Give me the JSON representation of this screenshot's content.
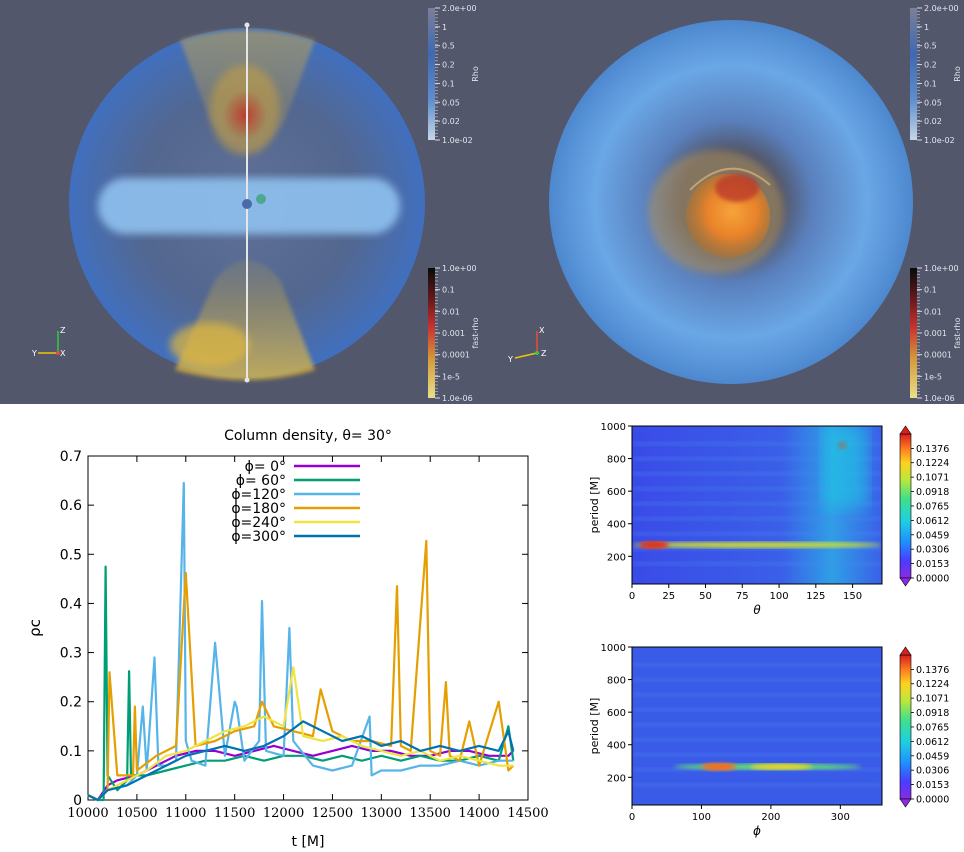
{
  "renders": {
    "left_colorbar_rho": {
      "title": "Rho",
      "ticks": [
        "2.0e+00",
        "1",
        "0.5",
        "0.2",
        "0.1",
        "0.05",
        "0.02",
        "1.0e-02"
      ]
    },
    "left_colorbar_fastrho": {
      "title": "fast-rho",
      "ticks": [
        "1.0e+00",
        "0.1",
        "0.01",
        "0.001",
        "0.0001",
        "1e-5",
        "1.0e-06"
      ]
    },
    "right_colorbar_rho": {
      "title": "Rho",
      "ticks": [
        "2.0e+00",
        "1",
        "0.5",
        "0.2",
        "0.1",
        "0.05",
        "0.02",
        "1.0e-02"
      ]
    },
    "right_colorbar_fastrho": {
      "title": "fast-rho",
      "ticks": [
        "1.0e+00",
        "0.1",
        "0.01",
        "0.001",
        "0.0001",
        "1e-5",
        "1.0e-06"
      ]
    },
    "axes_left": {
      "up": "Z",
      "side": "Y",
      "out": "X"
    },
    "axes_right": {
      "up": "X",
      "side": "Y",
      "out": "Z"
    },
    "colors": {
      "background": "#52576b",
      "disk": "#8fc1f0",
      "shell": "#4f83c8",
      "jet": "#d9b552",
      "core": "#e8822a"
    }
  },
  "chart_data": [
    {
      "type": "line",
      "title": "Column density, θ= 30°",
      "xlabel": "t [M]",
      "ylabel": "ρc",
      "xlim": [
        10000,
        14500
      ],
      "ylim": [
        0,
        0.7
      ],
      "xticks": [
        "10000",
        "10500",
        "11000",
        "11500",
        "12000",
        "12500",
        "13000",
        "13500",
        "14000",
        "14500"
      ],
      "yticks": [
        "0",
        "0.1",
        "0.2",
        "0.3",
        "0.4",
        "0.5",
        "0.6",
        "0.7"
      ],
      "legend_position": "top-center",
      "series": [
        {
          "name": "ϕ= 0°",
          "color": "#9400d3",
          "x": [
            10000,
            10100,
            10200,
            10300,
            10500,
            10700,
            10900,
            11100,
            11300,
            11500,
            11700,
            11900,
            12100,
            12300,
            12500,
            12700,
            12900,
            13100,
            13300,
            13500,
            13700,
            13900,
            14100,
            14300,
            14350
          ],
          "y": [
            0.01,
            0.0,
            0.03,
            0.04,
            0.05,
            0.07,
            0.09,
            0.1,
            0.1,
            0.09,
            0.1,
            0.11,
            0.1,
            0.09,
            0.1,
            0.11,
            0.1,
            0.1,
            0.09,
            0.09,
            0.1,
            0.1,
            0.09,
            0.09,
            0.1
          ]
        },
        {
          "name": "ϕ= 60°",
          "color": "#009e73",
          "x": [
            10000,
            10100,
            10160,
            10180,
            10200,
            10300,
            10400,
            10420,
            10440,
            10600,
            10800,
            11000,
            11200,
            11400,
            11600,
            11800,
            12000,
            12200,
            12400,
            12600,
            12800,
            13000,
            13200,
            13400,
            13600,
            13800,
            14000,
            14200,
            14300,
            14350
          ],
          "y": [
            0.01,
            0.0,
            0.0,
            0.475,
            0.05,
            0.02,
            0.04,
            0.262,
            0.05,
            0.05,
            0.06,
            0.07,
            0.08,
            0.08,
            0.09,
            0.08,
            0.09,
            0.09,
            0.08,
            0.09,
            0.08,
            0.09,
            0.08,
            0.09,
            0.08,
            0.08,
            0.09,
            0.08,
            0.15,
            0.08
          ]
        },
        {
          "name": "ϕ=120°",
          "color": "#56b4e9",
          "x": [
            10000,
            10100,
            10200,
            10400,
            10500,
            10560,
            10600,
            10680,
            10720,
            10800,
            10900,
            10980,
            11000,
            11060,
            11200,
            11300,
            11400,
            11500,
            11520,
            11600,
            11750,
            11780,
            11820,
            12000,
            12060,
            12100,
            12300,
            12500,
            12700,
            12880,
            12900,
            13000,
            13200,
            13400,
            13600,
            13800,
            14000,
            14200,
            14350
          ],
          "y": [
            0.01,
            0.0,
            0.02,
            0.03,
            0.05,
            0.19,
            0.06,
            0.29,
            0.07,
            0.07,
            0.08,
            0.645,
            0.12,
            0.08,
            0.07,
            0.32,
            0.09,
            0.2,
            0.19,
            0.08,
            0.12,
            0.405,
            0.1,
            0.09,
            0.35,
            0.12,
            0.07,
            0.06,
            0.07,
            0.17,
            0.05,
            0.06,
            0.06,
            0.07,
            0.07,
            0.08,
            0.07,
            0.08,
            0.08
          ]
        },
        {
          "name": "ϕ=180°",
          "color": "#e69f00",
          "x": [
            10000,
            10100,
            10200,
            10220,
            10300,
            10460,
            10480,
            10500,
            10700,
            10900,
            11000,
            11100,
            11300,
            11500,
            11700,
            11780,
            11900,
            12100,
            12300,
            12380,
            12500,
            12700,
            12900,
            13100,
            13160,
            13200,
            13300,
            13460,
            13500,
            13600,
            13660,
            13700,
            13800,
            13900,
            14000,
            14200,
            14300,
            14350
          ],
          "y": [
            0.01,
            0.0,
            0.02,
            0.26,
            0.05,
            0.05,
            0.19,
            0.06,
            0.09,
            0.11,
            0.462,
            0.11,
            0.12,
            0.14,
            0.15,
            0.2,
            0.15,
            0.14,
            0.13,
            0.225,
            0.14,
            0.12,
            0.12,
            0.11,
            0.435,
            0.11,
            0.1,
            0.527,
            0.1,
            0.09,
            0.24,
            0.09,
            0.08,
            0.16,
            0.07,
            0.2,
            0.06,
            0.07
          ]
        },
        {
          "name": "ϕ=240°",
          "color": "#f0e442",
          "x": [
            10000,
            10100,
            10200,
            10400,
            10600,
            10800,
            11000,
            11200,
            11400,
            11600,
            11800,
            12000,
            12100,
            12200,
            12400,
            12600,
            12800,
            13000,
            13200,
            13400,
            13600,
            13800,
            14000,
            14200,
            14350
          ],
          "y": [
            0.01,
            0.0,
            0.02,
            0.04,
            0.06,
            0.09,
            0.1,
            0.12,
            0.14,
            0.15,
            0.17,
            0.15,
            0.27,
            0.13,
            0.12,
            0.13,
            0.11,
            0.1,
            0.09,
            0.1,
            0.08,
            0.09,
            0.08,
            0.07,
            0.07
          ]
        },
        {
          "name": "ϕ=300°",
          "color": "#0072b2",
          "x": [
            10000,
            10100,
            10200,
            10400,
            10600,
            10800,
            11000,
            11200,
            11400,
            11600,
            11800,
            12000,
            12200,
            12400,
            12600,
            12800,
            13000,
            13200,
            13400,
            13600,
            13800,
            14000,
            14200,
            14300,
            14350
          ],
          "y": [
            0.01,
            0.0,
            0.02,
            0.03,
            0.05,
            0.07,
            0.09,
            0.1,
            0.11,
            0.1,
            0.11,
            0.13,
            0.16,
            0.14,
            0.12,
            0.13,
            0.11,
            0.12,
            0.1,
            0.11,
            0.1,
            0.11,
            0.1,
            0.14,
            0.1
          ]
        }
      ]
    },
    {
      "type": "heatmap",
      "xlabel": "θ",
      "ylabel": "period [M]",
      "xlim": [
        0,
        170
      ],
      "ylim": [
        30,
        1000
      ],
      "xticks": [
        "0",
        "25",
        "50",
        "75",
        "100",
        "125",
        "150"
      ],
      "yticks": [
        "200",
        "400",
        "600",
        "800",
        "1000"
      ],
      "colorbar": {
        "min": 0.0,
        "max": 0.1529,
        "ticks": [
          "0.0000",
          "0.0153",
          "0.0306",
          "0.0459",
          "0.0612",
          "0.0765",
          "0.0918",
          "0.1071",
          "0.1224",
          "0.1376"
        ]
      },
      "features": [
        {
          "theta": [
            0,
            170
          ],
          "period": 270,
          "level": 0.11
        },
        {
          "theta": [
            5,
            25
          ],
          "period": 270,
          "level": 0.15
        },
        {
          "theta": [
            140,
            146
          ],
          "period": 880,
          "level": 0.15
        },
        {
          "theta": [
            130,
            160
          ],
          "period": [
            500,
            1000
          ],
          "level": 0.06
        }
      ]
    },
    {
      "type": "heatmap",
      "xlabel": "ϕ",
      "ylabel": "period [M]",
      "xlim": [
        0,
        360
      ],
      "ylim": [
        30,
        1000
      ],
      "xticks": [
        "0",
        "100",
        "200",
        "300"
      ],
      "yticks": [
        "200",
        "400",
        "600",
        "800",
        "1000"
      ],
      "colorbar": {
        "min": 0.0,
        "max": 0.1529,
        "ticks": [
          "0.0000",
          "0.0153",
          "0.0306",
          "0.0459",
          "0.0612",
          "0.0765",
          "0.0918",
          "0.1071",
          "0.1224",
          "0.1376"
        ]
      },
      "features": [
        {
          "phi": [
            60,
            330
          ],
          "period": 265,
          "level": 0.09
        },
        {
          "phi": [
            100,
            150
          ],
          "period": 265,
          "level": 0.14
        },
        {
          "phi": [
            170,
            260
          ],
          "period": 265,
          "level": 0.12
        }
      ]
    }
  ]
}
